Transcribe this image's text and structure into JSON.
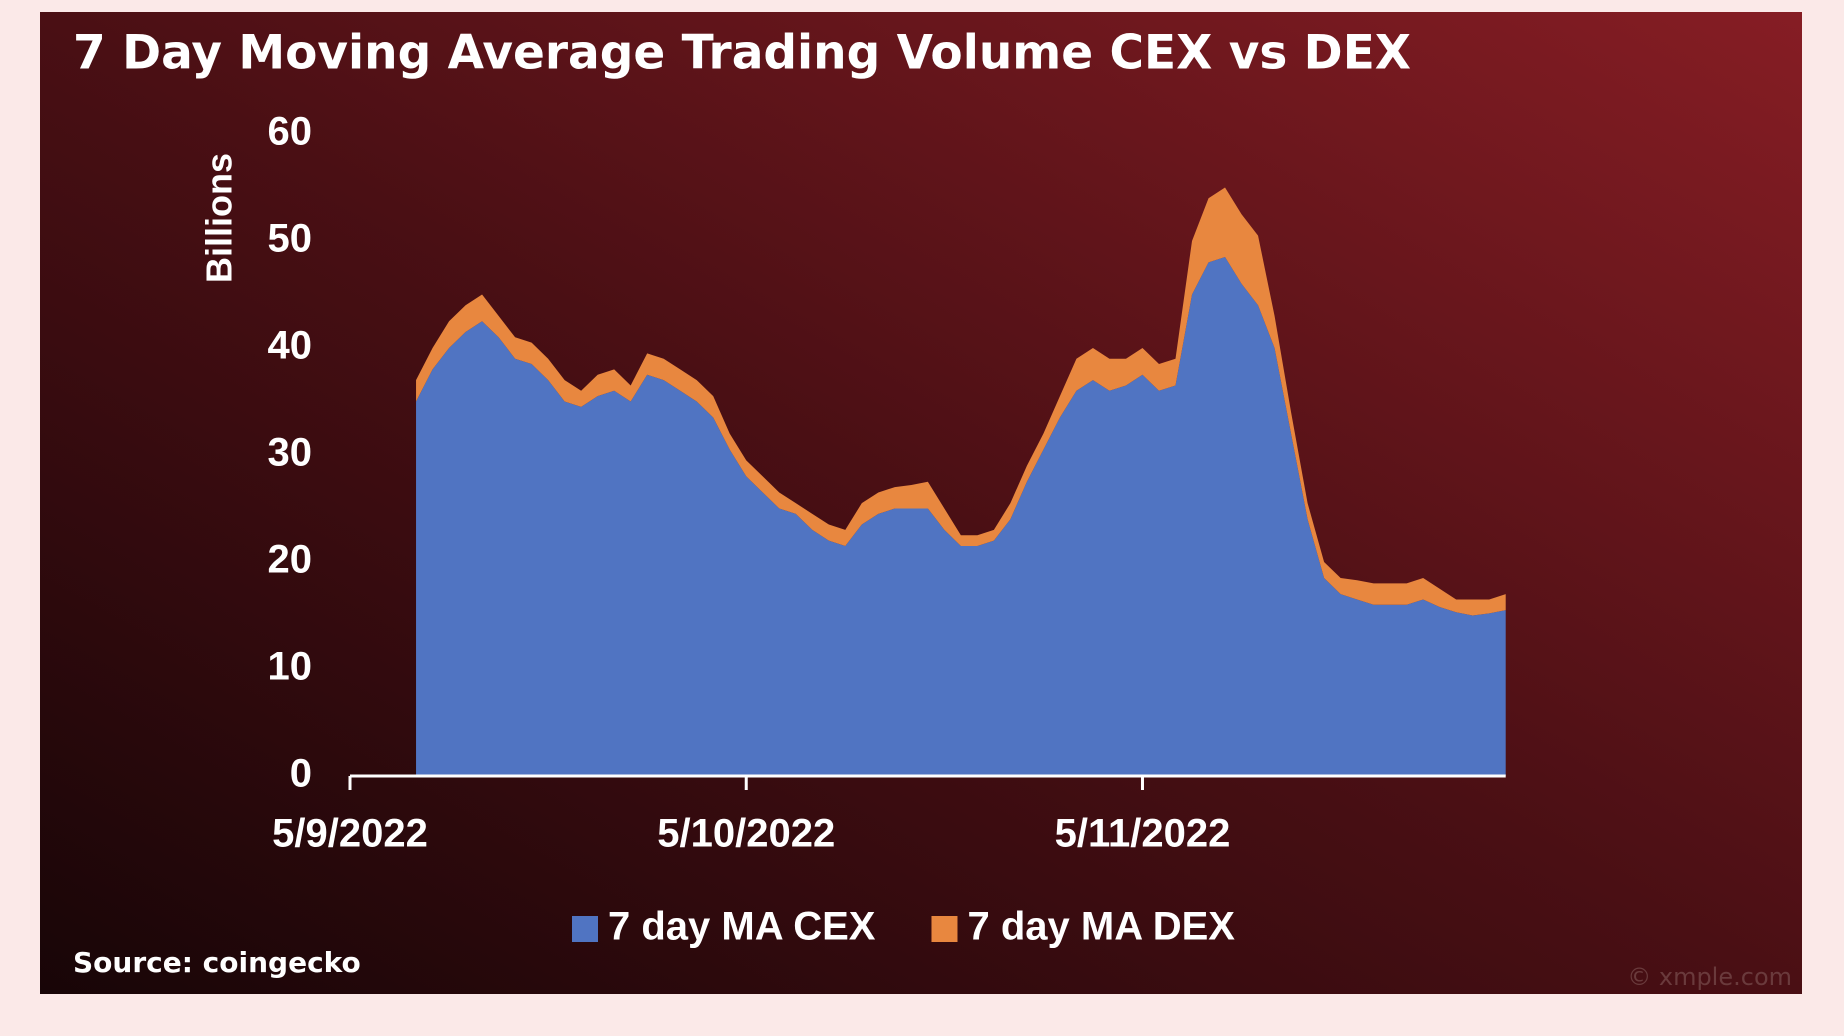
{
  "chart_data": {
    "type": "stacked_area",
    "title": "7 Day Moving Average Trading Volume CEX vs DEX",
    "ylabel": "Billions",
    "source": "Source: coingecko",
    "watermark": "© xmple.com",
    "categories": [
      "5/9/2022",
      null,
      null,
      null,
      null,
      null,
      null,
      null,
      null,
      null,
      null,
      null,
      null,
      null,
      null,
      null,
      null,
      null,
      null,
      null,
      null,
      null,
      null,
      null,
      "5/10/2022",
      null,
      null,
      null,
      null,
      null,
      null,
      null,
      null,
      null,
      null,
      null,
      null,
      null,
      null,
      null,
      null,
      null,
      null,
      null,
      null,
      null,
      null,
      null,
      "5/11/2022",
      null,
      null,
      null,
      null,
      null,
      null,
      null,
      null,
      null,
      null,
      null,
      null,
      null,
      null,
      null,
      null,
      null,
      null,
      null,
      null,
      null,
      null
    ],
    "series": [
      {
        "name": "7 day MA CEX",
        "color": "#5074c2",
        "values": [
          null,
          null,
          null,
          null,
          35,
          38,
          40,
          41.5,
          42.5,
          41,
          39,
          38.5,
          37,
          35,
          34.5,
          35.5,
          36,
          35,
          37.5,
          37,
          36,
          35,
          33.5,
          30.5,
          28,
          26.5,
          25,
          24.5,
          23,
          22,
          21.5,
          23.5,
          24.5,
          25,
          25,
          25,
          23,
          21.5,
          21.5,
          22,
          24,
          27.5,
          30.5,
          33.5,
          36,
          37,
          36,
          36.5,
          37.5,
          36,
          36.5,
          45,
          48,
          48.5,
          46,
          44,
          40,
          32,
          24,
          18.5,
          17,
          16.5,
          16,
          16,
          16,
          16.5,
          15.8,
          15.3,
          15,
          15.2,
          15.5
        ]
      },
      {
        "name": "7 day MA DEX",
        "color": "#e8873f",
        "values": [
          null,
          null,
          null,
          null,
          2,
          2,
          2.5,
          2.5,
          2.5,
          2,
          2,
          2,
          2,
          2,
          1.5,
          2,
          2,
          1.5,
          2,
          2,
          2,
          2,
          2,
          1.5,
          1.5,
          1.5,
          1.5,
          1,
          1.5,
          1.5,
          1.5,
          2,
          2,
          2,
          2.2,
          2.5,
          2,
          1,
          1,
          1,
          1.5,
          1.5,
          1.5,
          2,
          3,
          3,
          3,
          2.5,
          2.5,
          2.5,
          2.5,
          5,
          6,
          6.5,
          6.5,
          6.5,
          3,
          2,
          1.5,
          1.5,
          1.5,
          1.8,
          2,
          2,
          2,
          2,
          1.7,
          1.2,
          1.5,
          1.3,
          1.5
        ]
      }
    ],
    "ylim": [
      0,
      60
    ],
    "yticks": [
      0,
      10,
      20,
      30,
      40,
      50,
      60
    ],
    "legend": "bottom"
  }
}
